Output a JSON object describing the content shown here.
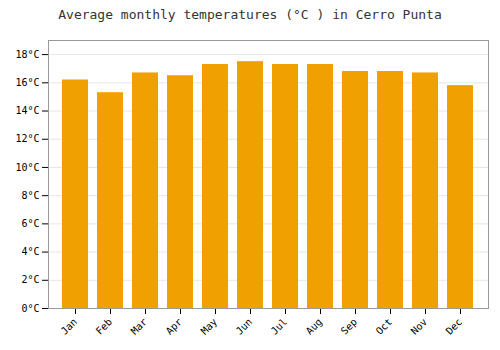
{
  "chart_data": {
    "type": "bar",
    "title": "Average monthly temperatures (°C ) in Cerro Punta",
    "categories": [
      "Jan",
      "Feb",
      "Mar",
      "Apr",
      "May",
      "Jun",
      "Jul",
      "Aug",
      "Sep",
      "Oct",
      "Nov",
      "Dec"
    ],
    "values": [
      16.2,
      15.3,
      16.7,
      16.5,
      17.3,
      17.5,
      17.3,
      17.3,
      16.8,
      16.8,
      16.7,
      15.8
    ],
    "color": "#F0A000",
    "ylim": [
      0,
      19.0
    ],
    "yticks": [
      {
        "value": 0,
        "label": "0°C"
      },
      {
        "value": 2,
        "label": "2°C"
      },
      {
        "value": 4,
        "label": "4°C"
      },
      {
        "value": 6,
        "label": "6°C"
      },
      {
        "value": 8,
        "label": "8°C"
      },
      {
        "value": 10,
        "label": "10°C"
      },
      {
        "value": 12,
        "label": "12°C"
      },
      {
        "value": 14,
        "label": "14°C"
      },
      {
        "value": 16,
        "label": "16°C"
      },
      {
        "value": 18,
        "label": "18°C"
      }
    ],
    "grid": true
  }
}
